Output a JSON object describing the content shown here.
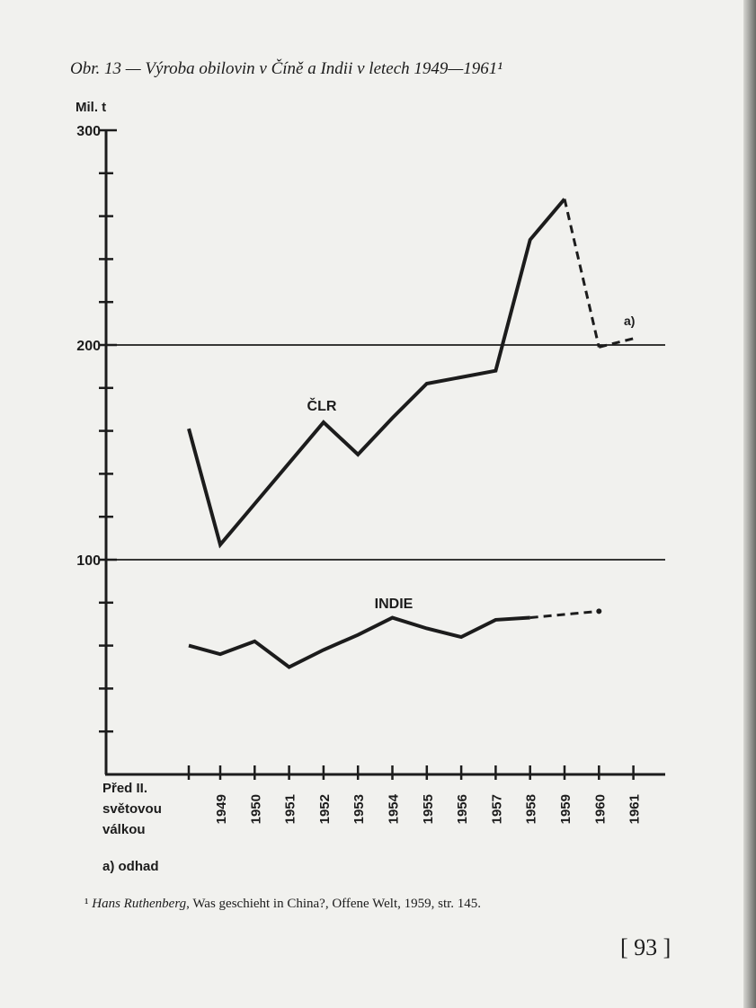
{
  "chart_data": {
    "type": "line",
    "title": "Obr. 13 — Výroba obilovin v Číně a Indii v letech 1949—1961¹",
    "ylabel": "Mil. t",
    "categories": [
      "Před II. světovou válkou",
      "1949",
      "1950",
      "1951",
      "1952",
      "1953",
      "1954",
      "1955",
      "1956",
      "1957",
      "1958",
      "1959",
      "1960",
      "1961"
    ],
    "series": [
      {
        "name": "ČLR",
        "color": "#1c1c1c",
        "values": [
          161,
          107,
          126,
          145,
          164,
          149,
          166,
          182,
          185,
          188,
          249,
          268,
          null,
          null
        ],
        "estimate_values": [
          null,
          null,
          null,
          null,
          null,
          null,
          null,
          null,
          null,
          null,
          null,
          null,
          199,
          203
        ]
      },
      {
        "name": "INDIE",
        "color": "#1c1c1c",
        "values": [
          60,
          56,
          62,
          50,
          58,
          65,
          73,
          68,
          64,
          72,
          73,
          null,
          null,
          null
        ],
        "estimate_values": [
          null,
          null,
          null,
          null,
          null,
          null,
          null,
          null,
          null,
          null,
          null,
          null,
          76,
          null
        ]
      }
    ],
    "estimate_label": "a)",
    "note": "a) odhad",
    "ylim": [
      0,
      300
    ],
    "yticks": [
      100,
      200,
      300
    ],
    "yminorticks": [
      20,
      40,
      60,
      80,
      120,
      140,
      160,
      180,
      220,
      240,
      260,
      280
    ],
    "grid": true
  },
  "footnote": {
    "marker": "¹",
    "author": "Hans Ruthenberg",
    "text": ", Was geschieht in China?, Offene Welt, 1959, str. 145."
  },
  "page_number": "[ 93 ]"
}
